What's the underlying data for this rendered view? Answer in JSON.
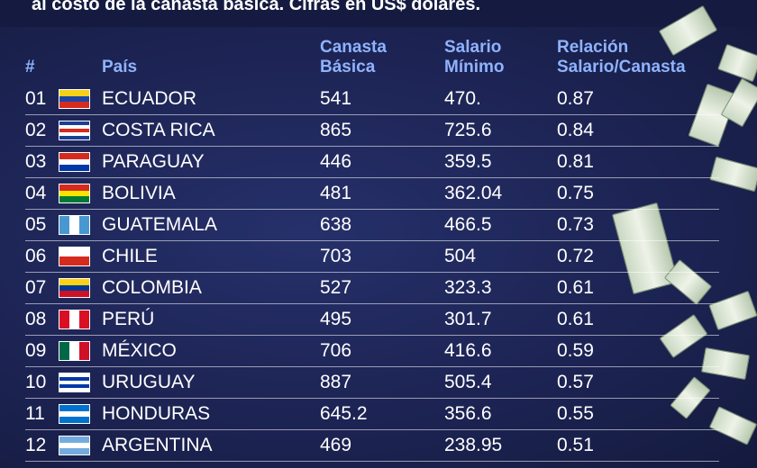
{
  "header": {
    "title": "al costo de la canasta básica. Cifras en US$ dólares."
  },
  "table": {
    "columns": [
      "#",
      "País",
      "Canasta Básica",
      "Salario Mínimo",
      "Relación Salario/Canasta"
    ],
    "rows": [
      [
        "01",
        "ECUADOR",
        "541",
        "470.",
        "0.87"
      ],
      [
        "02",
        "COSTA RICA",
        "865",
        "725.6",
        "0.84"
      ],
      [
        "03",
        "PARAGUAY",
        "446",
        "359.5",
        "0.81"
      ],
      [
        "04",
        "BOLIVIA",
        "481",
        "362.04",
        "0.75"
      ],
      [
        "05",
        "GUATEMALA",
        "638",
        "466.5",
        "0.73"
      ],
      [
        "06",
        "CHILE",
        "703",
        "504",
        "0.72"
      ],
      [
        "07",
        "COLOMBIA",
        "527",
        "323.3",
        "0.61"
      ],
      [
        "08",
        "PERÚ",
        "495",
        "301.7",
        "0.61"
      ],
      [
        "09",
        "MÉXICO",
        "706",
        "416.6",
        "0.59"
      ],
      [
        "10",
        "URUGUAY",
        "887",
        "505.4",
        "0.57"
      ],
      [
        "11",
        "HONDURAS",
        "645.2",
        "356.6",
        "0.55"
      ],
      [
        "12",
        "ARGENTINA",
        "469",
        "238.95",
        "0.51"
      ]
    ]
  }
}
